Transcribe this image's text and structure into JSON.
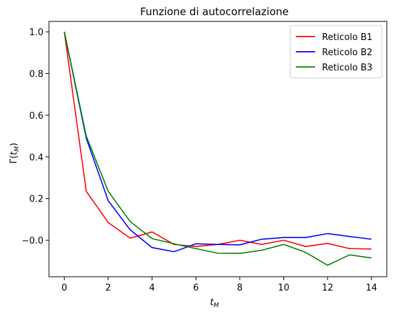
{
  "chart_data": {
    "type": "line",
    "title": "Funzione di autocorrelazione",
    "xlabel": "t_M",
    "ylabel": "Γ(t_M)",
    "xlim": [
      -0.7,
      14.7
    ],
    "ylim": [
      -0.175,
      1.05
    ],
    "xticks": [
      0,
      2,
      4,
      6,
      8,
      10,
      12,
      14
    ],
    "yticks": [
      -0.0,
      0.2,
      0.4,
      0.6,
      0.8,
      1.0
    ],
    "ytick_labels": [
      "−0.0",
      "0.2",
      "0.4",
      "0.6",
      "0.8",
      "1.0"
    ],
    "grid": false,
    "legend_position": "top-right",
    "x": [
      0,
      1,
      2,
      3,
      4,
      5,
      6,
      7,
      8,
      9,
      10,
      11,
      12,
      13,
      14
    ],
    "series": [
      {
        "name": "Reticolo B1",
        "color": "#ff0000",
        "values": [
          1.0,
          0.235,
          0.085,
          0.01,
          0.04,
          -0.02,
          -0.03,
          -0.02,
          0.0,
          -0.02,
          0.0,
          -0.03,
          -0.015,
          -0.04,
          -0.042
        ]
      },
      {
        "name": "Reticolo B2",
        "color": "#0000ff",
        "values": [
          1.0,
          0.49,
          0.19,
          0.05,
          -0.035,
          -0.055,
          -0.017,
          -0.02,
          -0.022,
          0.005,
          0.013,
          0.013,
          0.032,
          0.018,
          0.005
        ]
      },
      {
        "name": "Reticolo B3",
        "color": "#008000",
        "values": [
          1.0,
          0.5,
          0.235,
          0.09,
          0.008,
          -0.017,
          -0.04,
          -0.062,
          -0.063,
          -0.048,
          -0.02,
          -0.058,
          -0.12,
          -0.07,
          -0.085
        ]
      }
    ]
  }
}
